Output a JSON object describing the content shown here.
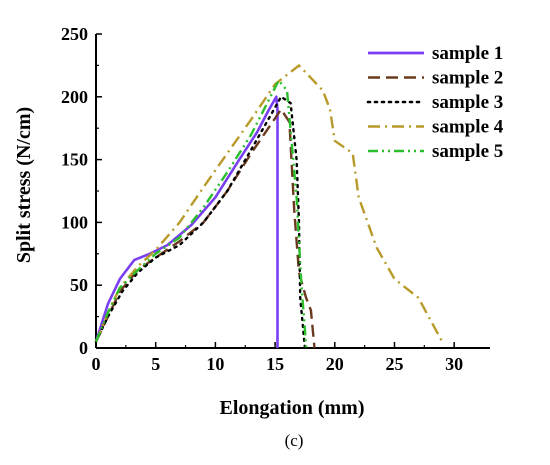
{
  "chart_data": {
    "type": "line",
    "xlabel": "Elongation (mm)",
    "ylabel": "Split stress (N/cm)",
    "caption": "(c)",
    "xlim": [
      0,
      33
    ],
    "ylim": [
      0,
      250
    ],
    "xticks": [
      0,
      5,
      10,
      15,
      20,
      25,
      30
    ],
    "yticks": [
      0,
      50,
      100,
      150,
      200,
      250
    ],
    "legend_position": "top-right",
    "series": [
      {
        "name": "sample 1",
        "color": "#7a3ff0",
        "dash": "solid",
        "x": [
          0,
          1,
          2,
          3.2,
          4.5,
          6,
          8,
          10,
          12,
          13.5,
          14.5,
          15.1,
          15.2,
          15.2
        ],
        "y": [
          5,
          35,
          55,
          70,
          75,
          82,
          98,
          120,
          150,
          172,
          190,
          200,
          190,
          0
        ]
      },
      {
        "name": "sample 2",
        "color": "#6b3a1f",
        "dash": "dashed",
        "x": [
          0,
          1,
          2,
          3.5,
          5,
          7,
          9,
          11,
          13,
          15.5,
          16.2,
          16.6,
          17,
          17.6,
          18,
          18.2,
          18.3
        ],
        "y": [
          5,
          25,
          45,
          62,
          72,
          85,
          100,
          125,
          155,
          190,
          180,
          110,
          60,
          40,
          30,
          10,
          0
        ]
      },
      {
        "name": "sample 3",
        "color": "#000000",
        "dash": "dotted",
        "x": [
          0,
          1,
          2.2,
          3.5,
          5,
          7,
          9,
          11,
          13,
          15.5,
          16.3,
          16.8,
          17,
          17.1,
          17.3,
          17.5
        ],
        "y": [
          5,
          25,
          45,
          60,
          72,
          82,
          100,
          125,
          158,
          200,
          195,
          150,
          100,
          40,
          20,
          0
        ]
      },
      {
        "name": "sample 4",
        "color": "#b89a2a",
        "dash": "dashdot",
        "x": [
          0,
          1,
          2,
          3.5,
          5,
          7,
          9,
          11,
          13,
          15,
          17,
          19,
          19.6,
          20,
          21.5,
          22,
          23.5,
          25,
          27,
          29
        ],
        "y": [
          5,
          28,
          48,
          65,
          78,
          100,
          128,
          155,
          182,
          210,
          225,
          205,
          190,
          165,
          155,
          120,
          80,
          55,
          40,
          5
        ]
      },
      {
        "name": "sample 5",
        "color": "#2bbf2b",
        "dash": "dashdotdot",
        "x": [
          0,
          1,
          2,
          3.5,
          5,
          7,
          9,
          11,
          13,
          15.3,
          16,
          16.8,
          17.2,
          17.5,
          17.6
        ],
        "y": [
          5,
          28,
          48,
          62,
          75,
          88,
          112,
          140,
          170,
          213,
          205,
          120,
          50,
          15,
          0
        ]
      }
    ]
  }
}
